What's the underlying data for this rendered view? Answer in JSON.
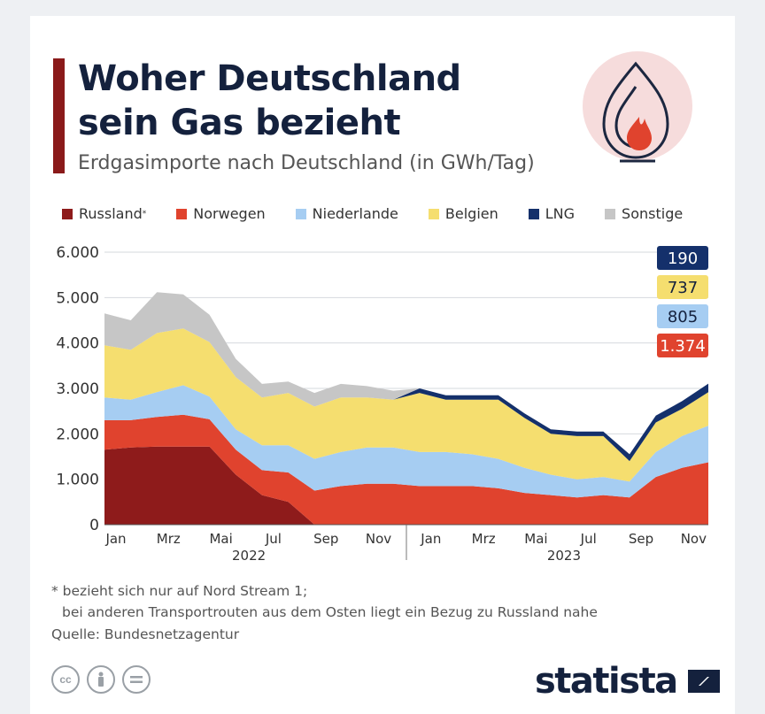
{
  "title_line1": "Woher Deutschland",
  "title_line2": "sein Gas bezieht",
  "subtitle": "Erdgasimporte nach Deutschland (in GWh/Tag)",
  "legend": [
    {
      "label": "Russland",
      "sup": "*",
      "color": "#8e1b1b"
    },
    {
      "label": "Norwegen",
      "sup": "",
      "color": "#e0432e"
    },
    {
      "label": "Niederlande",
      "sup": "",
      "color": "#a6cdf2"
    },
    {
      "label": "Belgien",
      "sup": "",
      "color": "#f5de6f"
    },
    {
      "label": "LNG",
      "sup": "",
      "color": "#14306b"
    },
    {
      "label": "Sonstige",
      "sup": "",
      "color": "#c6c6c6"
    }
  ],
  "value_badges": [
    {
      "text": "190",
      "color": "#14306b"
    },
    {
      "text": "737",
      "color": "#f5de6f"
    },
    {
      "text": "805",
      "color": "#a6cdf2"
    },
    {
      "text": "1.374",
      "color": "#e0432e"
    }
  ],
  "footnote_line1": "* bezieht sich nur auf Nord Stream 1;",
  "footnote_line2": "bei anderen Transportrouten aus dem Osten liegt ein Bezug zu Russland nahe",
  "source": "Quelle: Bundesnetzagentur",
  "brand": "statista",
  "cc_icons": [
    "cc-icon",
    "person-icon",
    "equals-icon"
  ],
  "chart_data": {
    "type": "area",
    "stacked": true,
    "y_ticks": [
      "0",
      "1.000",
      "2.000",
      "3.000",
      "4.000",
      "5.000",
      "6.000"
    ],
    "ylim": [
      0,
      6000
    ],
    "grid": true,
    "x_tick_labels": [
      "Jan",
      "Mrz",
      "Mai",
      "Jul",
      "Sep",
      "Nov",
      "Jan",
      "Mrz",
      "Mai",
      "Jul",
      "Sep",
      "Nov"
    ],
    "year_labels": [
      "2022",
      "2023"
    ],
    "x": [
      "2022-01",
      "2022-02",
      "2022-03",
      "2022-04",
      "2022-05",
      "2022-06",
      "2022-07",
      "2022-08",
      "2022-09",
      "2022-10",
      "2022-11",
      "2022-12",
      "2023-01",
      "2023-02",
      "2023-03",
      "2023-04",
      "2023-05",
      "2023-06",
      "2023-07",
      "2023-08",
      "2023-09",
      "2023-10",
      "2023-11",
      "2023-12"
    ],
    "series": [
      {
        "name": "Russland",
        "color": "#8e1b1b",
        "values": [
          1650,
          1700,
          1720,
          1720,
          1720,
          1100,
          650,
          500,
          0,
          0,
          0,
          0,
          0,
          0,
          0,
          0,
          0,
          0,
          0,
          0,
          0,
          0,
          0,
          0
        ]
      },
      {
        "name": "Norwegen",
        "color": "#e0432e",
        "values": [
          650,
          600,
          650,
          700,
          600,
          550,
          550,
          650,
          750,
          850,
          900,
          900,
          850,
          850,
          850,
          800,
          700,
          650,
          600,
          650,
          600,
          1050,
          1250,
          1374
        ]
      },
      {
        "name": "Niederlande",
        "color": "#a6cdf2",
        "values": [
          500,
          450,
          550,
          650,
          500,
          450,
          550,
          600,
          700,
          750,
          800,
          800,
          750,
          750,
          700,
          650,
          550,
          450,
          400,
          400,
          350,
          550,
          700,
          805
        ]
      },
      {
        "name": "Belgien",
        "color": "#f5de6f",
        "values": [
          1150,
          1100,
          1300,
          1250,
          1200,
          1150,
          1050,
          1150,
          1150,
          1200,
          1100,
          1050,
          1300,
          1150,
          1200,
          1300,
          1100,
          900,
          950,
          900,
          450,
          650,
          600,
          737
        ]
      },
      {
        "name": "LNG",
        "color": "#14306b",
        "values": [
          0,
          0,
          0,
          0,
          0,
          0,
          0,
          0,
          0,
          0,
          0,
          0,
          100,
          100,
          100,
          100,
          100,
          100,
          100,
          100,
          150,
          150,
          170,
          190
        ]
      },
      {
        "name": "Sonstige",
        "color": "#c6c6c6",
        "values": [
          700,
          650,
          900,
          750,
          600,
          400,
          300,
          250,
          300,
          300,
          250,
          200,
          0,
          0,
          0,
          0,
          0,
          0,
          0,
          0,
          0,
          0,
          0,
          0
        ]
      }
    ]
  }
}
